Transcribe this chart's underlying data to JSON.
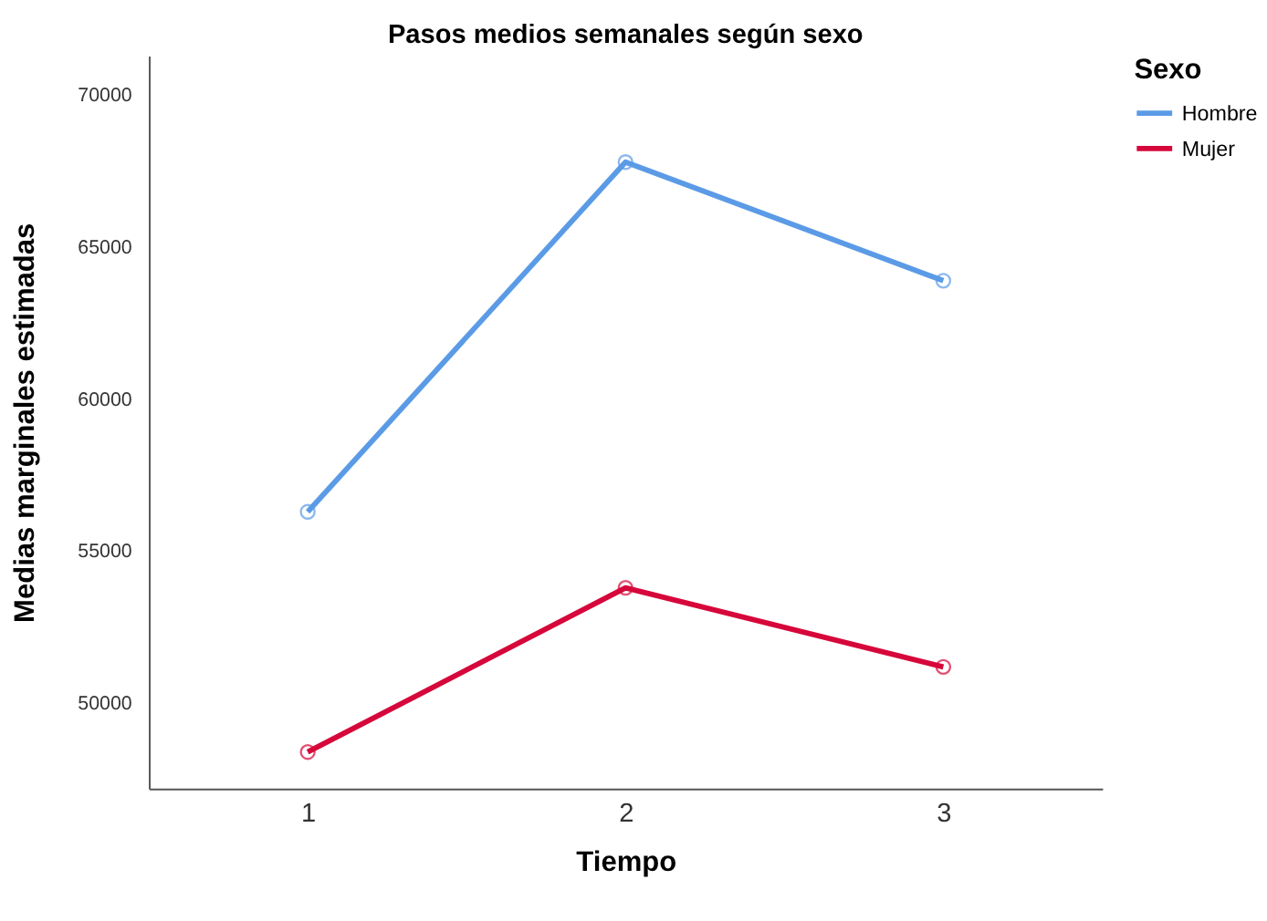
{
  "chart_data": {
    "type": "line",
    "title": "Pasos medios semanales según sexo",
    "xlabel": "Tiempo",
    "ylabel": "Medias marginales estimadas",
    "legend_title": "Sexo",
    "categories": [
      "1",
      "2",
      "3"
    ],
    "series": [
      {
        "name": "Hombre",
        "color": "#5b9be6",
        "values": [
          56300,
          67800,
          63900
        ]
      },
      {
        "name": "Mujer",
        "color": "#d6073a",
        "values": [
          48400,
          53800,
          51200
        ]
      }
    ],
    "ylim": [
      47200,
      71300
    ],
    "yticks": [
      50000,
      55000,
      60000,
      65000,
      70000
    ],
    "grid": false,
    "legend": "top right",
    "marker": "circle",
    "line_style": "solid"
  }
}
